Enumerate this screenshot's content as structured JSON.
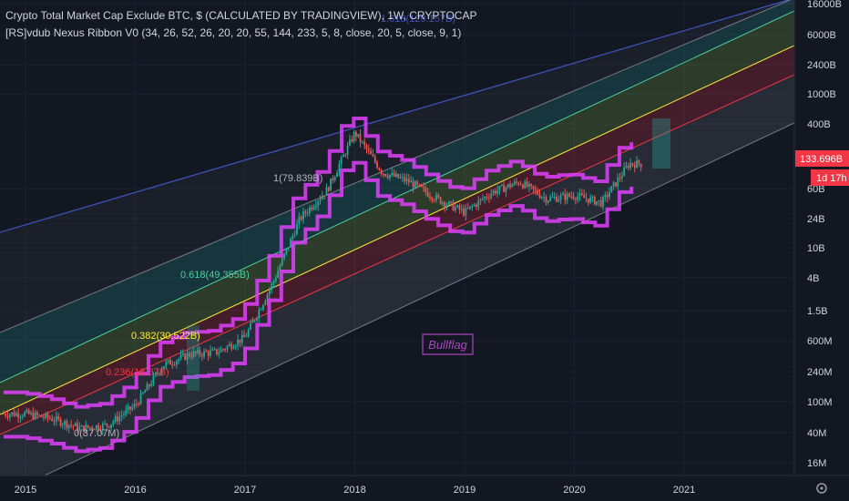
{
  "header": {
    "title": "Crypto Total Market Cap Exclude BTC, $ (CALCULATED BY TRADINGVIEW), 1W, CRYPTOCAP",
    "indicator": "[RS]vdub Nexus Ribbon V0 (34, 26, 52, 26, 20, 20, 55, 144, 233, 5, 8, close, 20, 5, close, 9, 1)"
  },
  "price_tag": {
    "value": "133.696B",
    "countdown": "1d 17h",
    "color": "#f23645"
  },
  "annotation": {
    "text": "Bullflag",
    "color": "#ab47bc"
  },
  "colors": {
    "background": "#131722",
    "candle_up": "#26a69a",
    "candle_down": "#ef5350",
    "ribbon": "#e040fb",
    "axis_text": "#d1d4dc"
  },
  "chart_data": {
    "type": "line",
    "title": "Crypto Total Market Cap Exclude BTC",
    "y_scale": "log",
    "y_ticks": [
      "16000B",
      "6000B",
      "2400B",
      "1000B",
      "400B",
      "133.696B",
      "60B",
      "24B",
      "10B",
      "4B",
      "1.5B",
      "600M",
      "240M",
      "100M",
      "40M",
      "16M"
    ],
    "x_ticks": [
      "2015",
      "2016",
      "2017",
      "2018",
      "2019",
      "2020",
      "2021"
    ],
    "fib_levels": [
      {
        "label": "0(37.07M)",
        "color": "#b2b5be"
      },
      {
        "label": "0.236(18.87B)",
        "color": "#f23645"
      },
      {
        "label": "0.382(30.522B)",
        "color": "#ffeb3b"
      },
      {
        "label": "0.618(49.355B)",
        "color": "#4dd0a0"
      },
      {
        "label": "1(79.839B)",
        "color": "#b2b5be"
      },
      {
        "label": "1.618(129.157B)",
        "color": "#3f51b5"
      }
    ],
    "series": [
      {
        "name": "Crypto Total Market Cap Exclude BTC",
        "x": [
          "2015",
          "2015.25",
          "2015.5",
          "2015.75",
          "2016",
          "2016.25",
          "2016.5",
          "2016.75",
          "2017",
          "2017.25",
          "2017.5",
          "2017.75",
          "2018",
          "2018.25",
          "2018.5",
          "2018.75",
          "2019",
          "2019.25",
          "2019.5",
          "2019.75",
          "2020",
          "2020.25",
          "2020.5"
        ],
        "values": [
          0.07,
          0.06,
          0.045,
          0.05,
          0.09,
          0.3,
          0.42,
          0.45,
          0.7,
          3.5,
          25,
          60,
          330,
          100,
          75,
          45,
          30,
          55,
          75,
          45,
          50,
          40,
          130
        ]
      }
    ]
  }
}
